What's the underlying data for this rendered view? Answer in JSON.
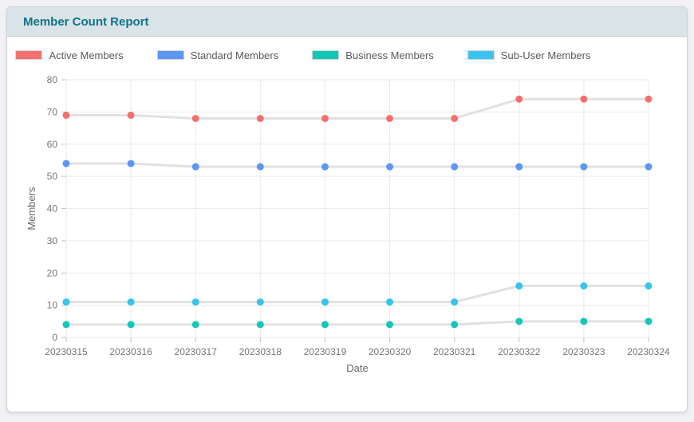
{
  "panel": {
    "title": "Member Count Report"
  },
  "chart_data": {
    "type": "line",
    "x": [
      "20230315",
      "20230316",
      "20230317",
      "20230318",
      "20230319",
      "20230320",
      "20230321",
      "20230322",
      "20230323",
      "20230324"
    ],
    "series": [
      {
        "name": "Active Members",
        "color": "#f4706f",
        "values": [
          69,
          69,
          68,
          68,
          68,
          68,
          68,
          74,
          74,
          74
        ]
      },
      {
        "name": "Standard Members",
        "color": "#5b97f3",
        "values": [
          54,
          54,
          53,
          53,
          53,
          53,
          53,
          53,
          53,
          53
        ]
      },
      {
        "name": "Business Members",
        "color": "#13c8b5",
        "values": [
          4,
          4,
          4,
          4,
          4,
          4,
          4,
          5,
          5,
          5
        ]
      },
      {
        "name": "Sub-User Members",
        "color": "#38c4ec",
        "values": [
          11,
          11,
          11,
          11,
          11,
          11,
          11,
          16,
          16,
          16
        ]
      }
    ],
    "xlabel": "Date",
    "ylabel": "Members",
    "ylim": [
      0,
      80
    ],
    "ytick_step": 10,
    "line_color": "#e1e1e1",
    "grid_color": "#eaeaea",
    "tick_color": "#c2c2c2",
    "grid": true,
    "legend_position": "top"
  }
}
